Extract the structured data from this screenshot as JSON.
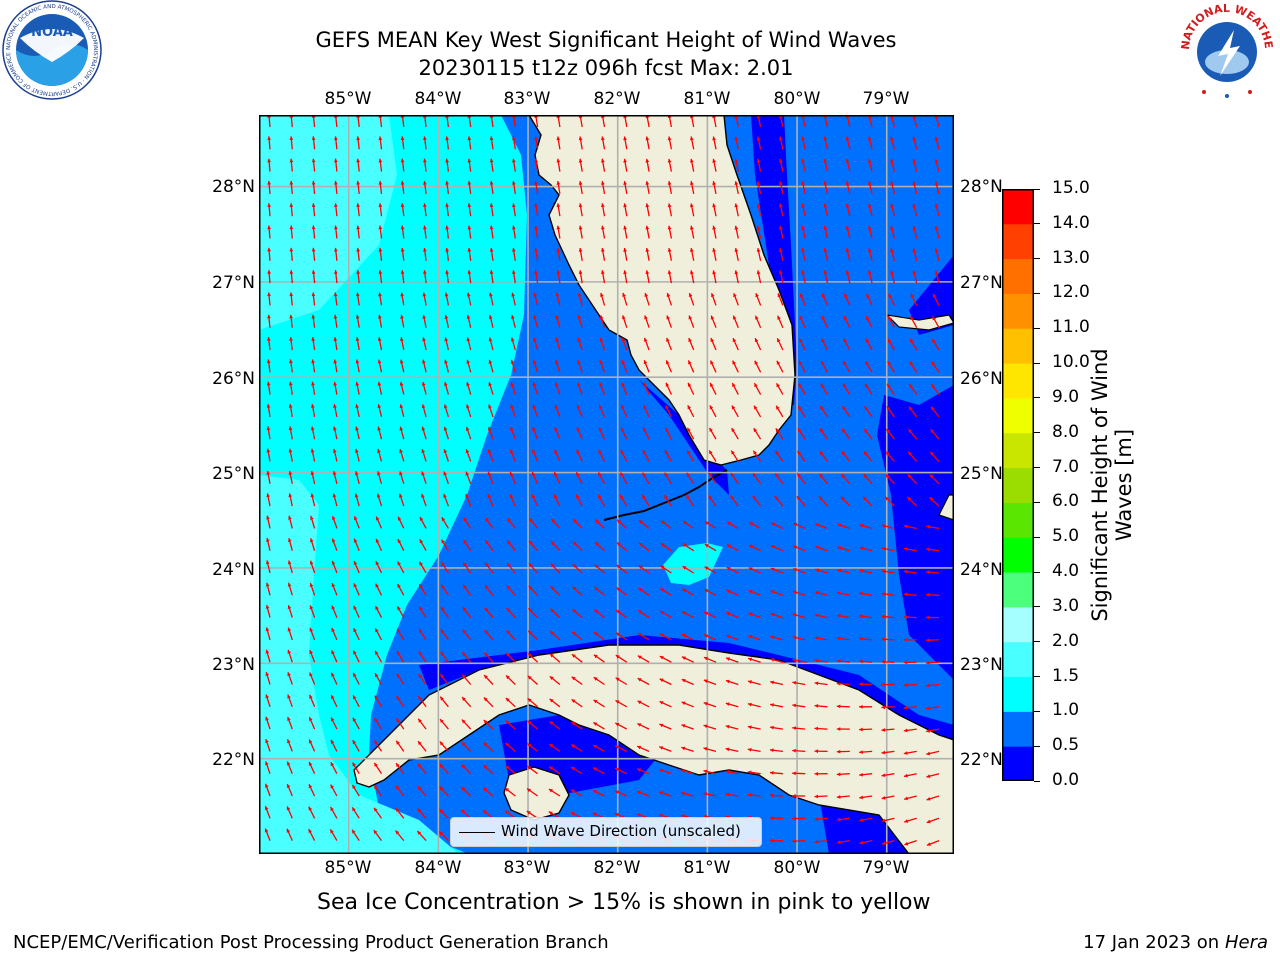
{
  "title": {
    "line1": "GEFS MEAN Key West Significant Height of Wind Waves",
    "line2": "20230115 t12z 096h fcst   Max: 2.01"
  },
  "map": {
    "lon_ticks": [
      "85°W",
      "84°W",
      "83°W",
      "82°W",
      "81°W",
      "80°W",
      "79°W"
    ],
    "lon_values": [
      -85,
      -84,
      -83,
      -82,
      -81,
      -80,
      -79
    ],
    "lat_ticks": [
      "28°N",
      "27°N",
      "26°N",
      "25°N",
      "24°N",
      "23°N",
      "22°N"
    ],
    "lat_values": [
      28,
      27,
      26,
      25,
      24,
      23,
      22
    ],
    "extent": {
      "lon_min": -86.0,
      "lon_max": -78.25,
      "lat_min": 21.0,
      "lat_max": 28.75
    },
    "grid": true,
    "land_color": "#efefdc",
    "legend": {
      "label": "Wind Wave Direction (unscaled)",
      "placement": "bottom-center"
    },
    "arrow_color": "#ff0000"
  },
  "colorbar": {
    "title": "Significant Height of Wind Waves [m]",
    "tick_labels": [
      "0.0",
      "0.5",
      "1.0",
      "1.5",
      "2.0",
      "3.0",
      "4.0",
      "5.0",
      "6.0",
      "7.0",
      "8.0",
      "9.0",
      "10.0",
      "11.0",
      "12.0",
      "13.0",
      "14.0",
      "15.0"
    ],
    "levels": [
      0,
      0.5,
      1,
      1.5,
      2,
      3,
      4,
      5,
      6,
      7,
      8,
      9,
      10,
      11,
      12,
      13,
      14,
      15
    ],
    "colors": [
      "#0000ff",
      "#0070ff",
      "#00ffff",
      "#49ffff",
      "#a6ffff",
      "#4cff7d",
      "#00ff00",
      "#5ae600",
      "#9bdd00",
      "#c8e600",
      "#f0ff00",
      "#ffe600",
      "#ffc000",
      "#ff9000",
      "#ff7000",
      "#ff4000",
      "#ff0000"
    ]
  },
  "subtitle": "Sea Ice Concentration > 15% is shown in pink to yellow",
  "footer": {
    "left": "NCEP/EMC/Verification Post Processing Product Generation Branch",
    "right_prefix": "17 Jan 2023 on ",
    "right_host": "Hera"
  },
  "logos": {
    "noaa": {
      "text": "NOAA",
      "ring_text": "NATIONAL OCEANIC AND ATMOSPHERIC ADMINISTRATION · U.S. DEPARTMENT OF COMMERCE"
    },
    "nws": {
      "ring_text": "NATIONAL WEATHER SERVICE"
    }
  }
}
